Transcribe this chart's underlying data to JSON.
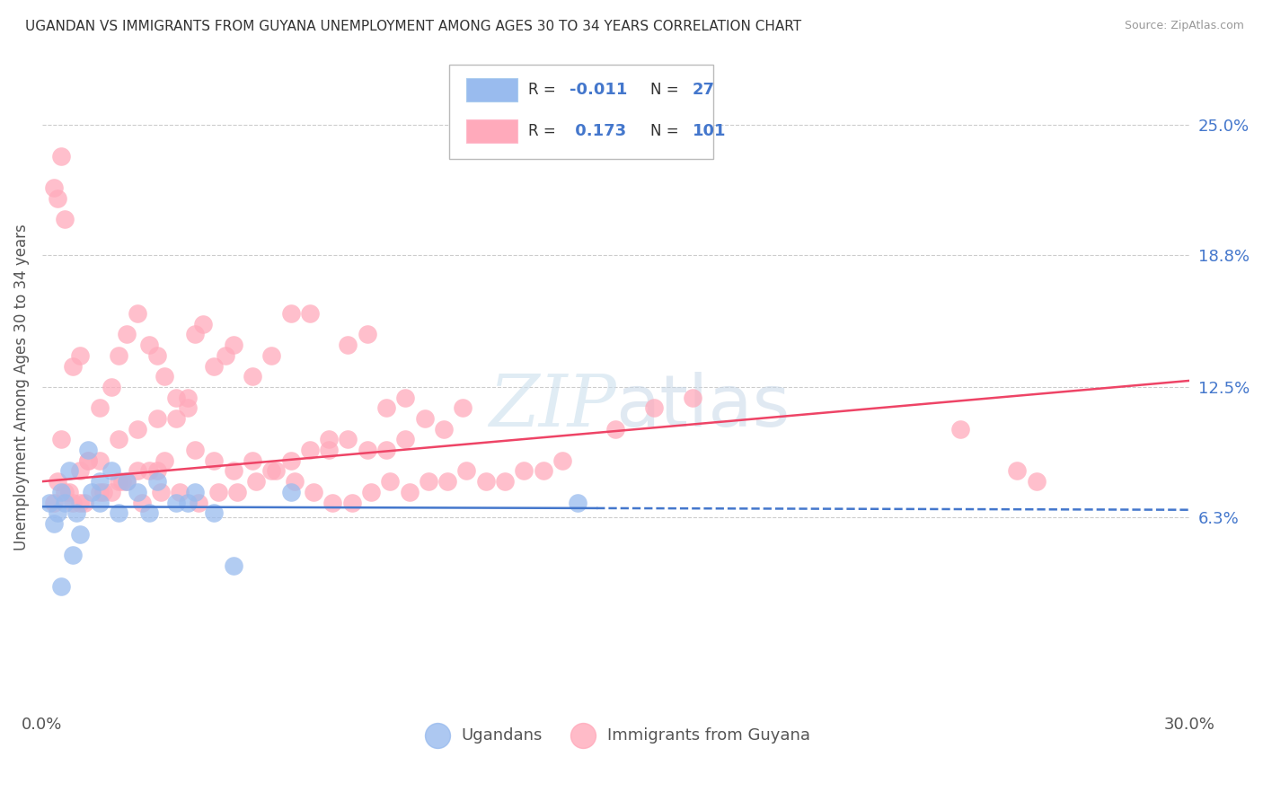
{
  "title": "UGANDAN VS IMMIGRANTS FROM GUYANA UNEMPLOYMENT AMONG AGES 30 TO 34 YEARS CORRELATION CHART",
  "source": "Source: ZipAtlas.com",
  "ylabel": "Unemployment Among Ages 30 to 34 years",
  "xlim": [
    0.0,
    30.0
  ],
  "ylim": [
    -3.0,
    28.0
  ],
  "x_ticks": [
    0.0,
    5.0,
    10.0,
    15.0,
    20.0,
    25.0,
    30.0
  ],
  "right_y_ticks": [
    6.3,
    12.5,
    18.8,
    25.0
  ],
  "right_y_labels": [
    "6.3%",
    "12.5%",
    "18.8%",
    "25.0%"
  ],
  "grid_color": "#cccccc",
  "background_color": "#ffffff",
  "ugandan_color": "#99bbee",
  "guyana_color": "#ffaabb",
  "ugandan_R": -0.011,
  "ugandan_N": 27,
  "guyana_R": 0.173,
  "guyana_N": 101,
  "ugandan_line_color": "#4477cc",
  "guyana_line_color": "#ee4466",
  "legend_color": "#4477cc",
  "watermark_color": "#d8e8f0",
  "ugandan_scatter_x": [
    0.5,
    1.0,
    0.3,
    0.8,
    1.5,
    0.6,
    2.0,
    1.2,
    0.4,
    1.8,
    2.5,
    3.0,
    3.5,
    4.0,
    0.7,
    1.3,
    2.2,
    0.9,
    0.2,
    3.8,
    5.0,
    1.5,
    6.5,
    2.8,
    4.5,
    14.0,
    0.5
  ],
  "ugandan_scatter_y": [
    7.5,
    5.5,
    6.0,
    4.5,
    7.0,
    7.0,
    6.5,
    9.5,
    6.5,
    8.5,
    7.5,
    8.0,
    7.0,
    7.5,
    8.5,
    7.5,
    8.0,
    6.5,
    7.0,
    7.0,
    4.0,
    8.0,
    7.5,
    6.5,
    6.5,
    7.0,
    3.0
  ],
  "guyana_scatter_x": [
    0.3,
    0.4,
    0.5,
    0.6,
    0.8,
    1.0,
    1.2,
    1.5,
    1.8,
    2.0,
    2.2,
    2.5,
    2.8,
    3.0,
    3.2,
    3.5,
    3.8,
    4.0,
    4.2,
    4.5,
    4.8,
    5.0,
    5.5,
    6.0,
    6.5,
    7.0,
    7.5,
    8.0,
    8.5,
    9.0,
    9.5,
    10.0,
    1.0,
    1.5,
    2.0,
    2.5,
    3.0,
    3.5,
    4.0,
    0.5,
    0.8,
    1.2,
    1.8,
    2.2,
    2.8,
    3.2,
    3.8,
    4.5,
    5.0,
    5.5,
    6.0,
    6.5,
    7.0,
    7.5,
    8.0,
    8.5,
    9.0,
    9.5,
    10.5,
    11.0,
    0.3,
    0.6,
    1.0,
    1.5,
    2.0,
    2.5,
    3.0,
    0.4,
    0.7,
    1.1,
    1.6,
    2.1,
    2.6,
    3.1,
    3.6,
    4.1,
    4.6,
    5.1,
    5.6,
    6.1,
    6.6,
    7.1,
    7.6,
    8.1,
    8.6,
    9.1,
    9.6,
    10.1,
    10.6,
    11.1,
    11.6,
    12.1,
    12.6,
    13.1,
    13.6,
    15.0,
    16.0,
    17.0,
    24.0,
    25.5,
    26.0
  ],
  "guyana_scatter_y": [
    22.0,
    21.5,
    23.5,
    20.5,
    13.5,
    14.0,
    9.0,
    11.5,
    12.5,
    14.0,
    15.0,
    16.0,
    14.5,
    14.0,
    13.0,
    11.0,
    12.0,
    15.0,
    15.5,
    13.5,
    14.0,
    14.5,
    13.0,
    14.0,
    16.0,
    16.0,
    9.5,
    14.5,
    15.0,
    11.5,
    12.0,
    11.0,
    7.0,
    7.5,
    8.0,
    8.5,
    8.5,
    12.0,
    9.5,
    10.0,
    7.0,
    9.0,
    7.5,
    8.0,
    8.5,
    9.0,
    11.5,
    9.0,
    8.5,
    9.0,
    8.5,
    9.0,
    9.5,
    10.0,
    10.0,
    9.5,
    9.5,
    10.0,
    10.5,
    11.5,
    7.0,
    7.5,
    8.5,
    9.0,
    10.0,
    10.5,
    11.0,
    8.0,
    7.5,
    7.0,
    7.5,
    8.0,
    7.0,
    7.5,
    7.5,
    7.0,
    7.5,
    7.5,
    8.0,
    8.5,
    8.0,
    7.5,
    7.0,
    7.0,
    7.5,
    8.0,
    7.5,
    8.0,
    8.0,
    8.5,
    8.0,
    8.0,
    8.5,
    8.5,
    9.0,
    10.5,
    11.5,
    12.0,
    10.5,
    8.5,
    8.0
  ],
  "ug_line_x0": 0.0,
  "ug_line_x_solid_end": 14.5,
  "ug_line_x1": 30.0,
  "ug_line_y0": 6.8,
  "ug_line_y1": 6.65,
  "gy_line_x0": 0.0,
  "gy_line_x1": 30.0,
  "gy_line_y0": 8.0,
  "gy_line_y1": 12.8
}
